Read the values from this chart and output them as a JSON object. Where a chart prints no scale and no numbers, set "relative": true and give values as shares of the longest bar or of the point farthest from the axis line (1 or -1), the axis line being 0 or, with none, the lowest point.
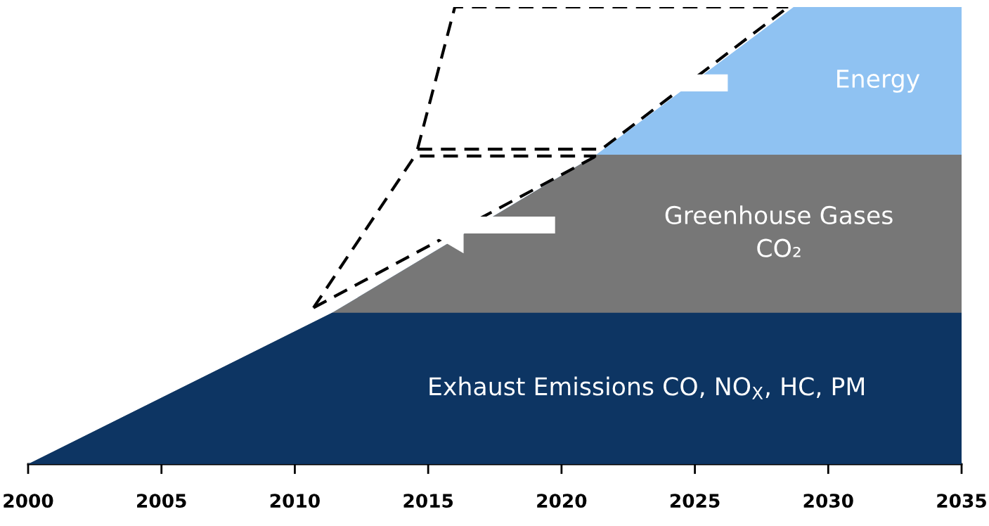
{
  "chart_data": {
    "type": "area",
    "relative": true,
    "x": [
      2000,
      2011.4,
      2021.3,
      2028.7,
      2035
    ],
    "xlim": [
      2000,
      2035
    ],
    "xticks": [
      2000,
      2005,
      2010,
      2015,
      2020,
      2025,
      2030,
      2035
    ],
    "tick_labels": "x",
    "grid": false,
    "legend": false,
    "series": [
      {
        "name": "Exhaust Emissions CO, NO$_{X}$, HC, PM",
        "color": "#0d3563",
        "values": [
          0,
          0.331,
          0.331,
          0.331,
          0.331
        ]
      },
      {
        "name": "Greenhouse Gases\nCO₂",
        "color": "#777777",
        "values": [
          0,
          0.331,
          0.677,
          0.677,
          0.677
        ]
      },
      {
        "name": "Energy",
        "color": "#8fc2f2",
        "values": [
          0,
          0.331,
          0.677,
          1.0,
          1.0
        ]
      },
      {
        "type": "line",
        "line_style": "dashed",
        "color": "#000000",
        "x": [
          2010.7,
          2014.5,
          2021.3
        ],
        "values": [
          0.342,
          0.674,
          0.674
        ]
      },
      {
        "type": "line",
        "line_style": "dashed",
        "color": "#000000",
        "x": [
          2010.7,
          2021.3
        ],
        "values": [
          0.342,
          0.674
        ]
      },
      {
        "type": "line",
        "line_style": "dashed",
        "color": "#000000",
        "x": [
          2014.6,
          2016.0,
          2028.5
        ],
        "values": [
          0.689,
          1.0,
          1.0
        ]
      },
      {
        "type": "line",
        "line_style": "dashed",
        "color": "#000000",
        "x": [
          2014.6,
          2021.5,
          2028.5
        ],
        "values": [
          0.689,
          0.689,
          1.0
        ]
      }
    ]
  }
}
